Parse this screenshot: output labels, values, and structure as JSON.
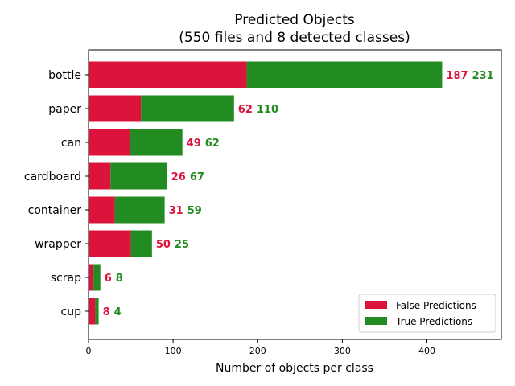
{
  "chart_data": {
    "type": "bar",
    "orientation": "horizontal",
    "stacked": true,
    "title": "Predicted Objects",
    "subtitle": "(550 files and 8 detected classes)",
    "xlabel": "Number of objects per class",
    "ylabel": "",
    "categories": [
      "bottle",
      "paper",
      "can",
      "cardboard",
      "container",
      "wrapper",
      "scrap",
      "cup"
    ],
    "series": [
      {
        "name": "False Predictions",
        "color": "#dc143c",
        "values": [
          187,
          62,
          49,
          26,
          31,
          50,
          6,
          8
        ]
      },
      {
        "name": "True Predictions",
        "color": "#228b22",
        "values": [
          231,
          110,
          62,
          67,
          59,
          25,
          8,
          4
        ]
      }
    ],
    "xlim": [
      0,
      488
    ],
    "xticks": [
      0,
      100,
      200,
      300,
      400
    ],
    "grid": false,
    "legend": "lower-right"
  }
}
